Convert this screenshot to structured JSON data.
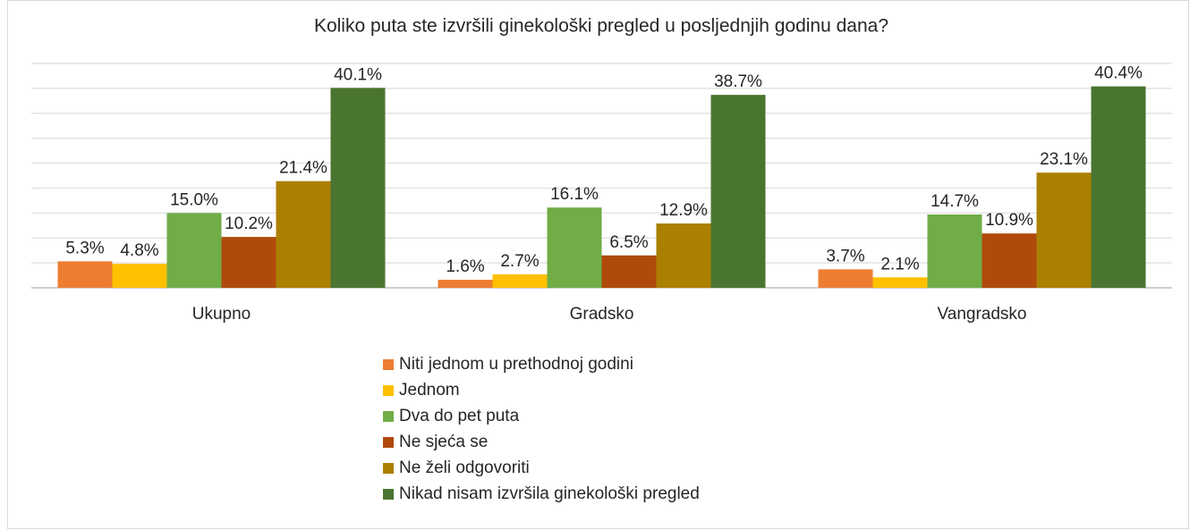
{
  "chart_data": {
    "type": "bar",
    "title": "Koliko puta ste izvršili ginekološki pregled u posljednjih godinu dana?",
    "categories": [
      "Ukupno",
      "Gradsko",
      "Vangradsko"
    ],
    "series": [
      {
        "name": "Niti jednom u prethodnoj godini",
        "color": "#ed7d31",
        "values": [
          5.3,
          1.6,
          3.7
        ],
        "value_labels": [
          "5.3%",
          "1.6%",
          "3.7%"
        ]
      },
      {
        "name": "Jednom",
        "color": "#ffc000",
        "values": [
          4.8,
          2.7,
          2.1
        ],
        "value_labels": [
          "4.8%",
          "2.7%",
          "2.1%"
        ]
      },
      {
        "name": "Dva do pet puta",
        "color": "#70ad47",
        "values": [
          15.0,
          16.1,
          14.7
        ],
        "value_labels": [
          "15.0%",
          "16.1%",
          "14.7%"
        ]
      },
      {
        "name": "Ne sjeća se",
        "color": "#b04a0c",
        "values": [
          10.2,
          6.5,
          10.9
        ],
        "value_labels": [
          "10.2%",
          "6.5%",
          "10.9%"
        ]
      },
      {
        "name": "Ne želi odgovoriti",
        "color": "#ab8000",
        "values": [
          21.4,
          12.9,
          23.1
        ],
        "value_labels": [
          "21.4%",
          "12.9%",
          "23.1%"
        ]
      },
      {
        "name": "Nikad nisam izvršila ginekološki pregled",
        "color": "#4a7530",
        "values": [
          40.1,
          38.7,
          40.4
        ],
        "value_labels": [
          "40.1%",
          "38.7%",
          "40.4%"
        ]
      }
    ],
    "ylim": [
      0,
      45
    ],
    "yticks": [
      0,
      5,
      10,
      15,
      20,
      25,
      30,
      35,
      40,
      45
    ],
    "grid": true,
    "legend": "bottom"
  }
}
